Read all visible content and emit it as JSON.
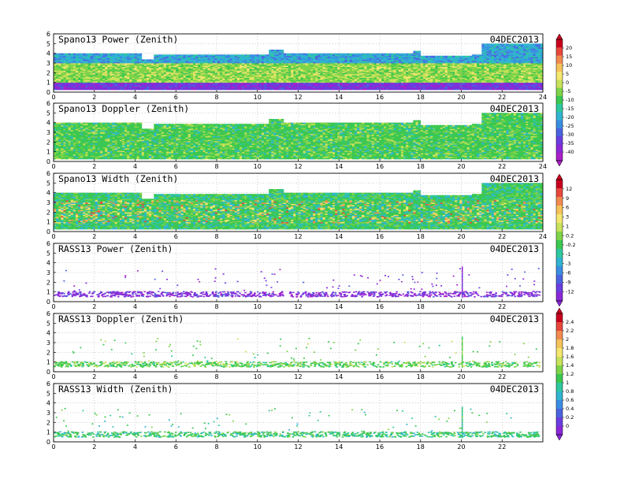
{
  "chart_data": [
    {
      "type": "heatmap",
      "title": "Spano13 Power (Zenith)",
      "date": "04DEC2013",
      "x_ticks": [
        "0",
        "2",
        "4",
        "6",
        "8",
        "10",
        "12",
        "14",
        "16",
        "18",
        "20",
        "22",
        "24"
      ],
      "y_ticks": [
        "0",
        "1",
        "2",
        "3",
        "4",
        "5",
        "6"
      ],
      "xlim": [
        0,
        24
      ],
      "ylim": [
        0,
        6
      ],
      "grid": true,
      "colorbar": "power",
      "profile": "power",
      "coverage_top_km": [
        [
          0,
          4.1
        ],
        [
          0.9,
          4.1
        ],
        [
          3.0,
          4.1
        ],
        [
          4.3,
          3.4
        ],
        [
          4.9,
          3.9
        ],
        [
          7.5,
          3.9
        ],
        [
          10.5,
          4.4
        ],
        [
          11.2,
          4.0
        ],
        [
          17.6,
          4.3
        ],
        [
          18.0,
          3.8
        ],
        [
          20.5,
          3.9
        ],
        [
          21.0,
          5.0
        ],
        [
          24,
          5.1
        ]
      ]
    },
    {
      "type": "heatmap",
      "title": "Spano13 Doppler (Zenith)",
      "date": "04DEC2013",
      "x_ticks": [
        "0",
        "2",
        "4",
        "6",
        "8",
        "10",
        "12",
        "14",
        "16",
        "18",
        "20",
        "22",
        "24"
      ],
      "y_ticks": [
        "0",
        "1",
        "2",
        "3",
        "4",
        "5",
        "6"
      ],
      "xlim": [
        0,
        24
      ],
      "ylim": [
        0,
        6
      ],
      "grid": true,
      "colorbar": "power",
      "profile": "doppler",
      "coverage_top_km": [
        [
          0,
          4.1
        ],
        [
          0.9,
          4.1
        ],
        [
          3.0,
          4.1
        ],
        [
          4.3,
          3.4
        ],
        [
          4.9,
          3.9
        ],
        [
          7.5,
          3.9
        ],
        [
          10.5,
          4.4
        ],
        [
          11.2,
          4.0
        ],
        [
          17.6,
          4.3
        ],
        [
          18.0,
          3.8
        ],
        [
          20.5,
          3.9
        ],
        [
          21.0,
          5.0
        ],
        [
          24,
          5.1
        ]
      ]
    },
    {
      "type": "heatmap",
      "title": "Spano13 Width (Zenith)",
      "date": "04DEC2013",
      "x_ticks": [
        "0",
        "2",
        "4",
        "6",
        "8",
        "10",
        "12",
        "14",
        "16",
        "18",
        "20",
        "22",
        "24"
      ],
      "y_ticks": [
        "0",
        "1",
        "2",
        "3",
        "4",
        "5",
        "6"
      ],
      "xlim": [
        0,
        24
      ],
      "ylim": [
        0,
        6
      ],
      "grid": true,
      "colorbar": "width",
      "profile": "width",
      "coverage_top_km": [
        [
          0,
          4.1
        ],
        [
          0.9,
          4.1
        ],
        [
          3.0,
          4.1
        ],
        [
          4.3,
          3.4
        ],
        [
          4.9,
          3.9
        ],
        [
          7.5,
          3.9
        ],
        [
          10.5,
          4.4
        ],
        [
          11.2,
          4.0
        ],
        [
          17.6,
          4.3
        ],
        [
          18.0,
          3.8
        ],
        [
          20.5,
          3.9
        ],
        [
          21.0,
          5.0
        ],
        [
          24,
          5.1
        ]
      ]
    },
    {
      "type": "scatter",
      "title": "RASS13 Power (Zenith)",
      "date": "04DEC2013",
      "x_ticks": [
        "0",
        "2",
        "4",
        "6",
        "8",
        "10",
        "12",
        "14",
        "16",
        "18",
        "20",
        "22"
      ],
      "y_ticks": [
        "0",
        "1",
        "2",
        "3",
        "4",
        "5",
        "6"
      ],
      "xlim": [
        0,
        24
      ],
      "ylim": [
        0,
        6
      ],
      "grid": true,
      "colorbar": "width",
      "profile": "rass_power"
    },
    {
      "type": "scatter",
      "title": "RASS13 Doppler (Zenith)",
      "date": "04DEC2013",
      "x_ticks": [
        "0",
        "2",
        "4",
        "6",
        "8",
        "10",
        "12",
        "14",
        "16",
        "18",
        "20",
        "22"
      ],
      "y_ticks": [
        "0",
        "1",
        "2",
        "3",
        "4",
        "5",
        "6"
      ],
      "xlim": [
        0,
        24
      ],
      "ylim": [
        0,
        6
      ],
      "grid": true,
      "colorbar": "rass",
      "profile": "rass_doppler"
    },
    {
      "type": "scatter",
      "title": "RASS13 Width (Zenith)",
      "date": "04DEC2013",
      "x_ticks": [
        "0",
        "2",
        "4",
        "6",
        "8",
        "10",
        "12",
        "14",
        "16",
        "18",
        "20",
        "22"
      ],
      "y_ticks": [
        "0",
        "1",
        "2",
        "3",
        "4",
        "5",
        "6"
      ],
      "xlim": [
        0,
        24
      ],
      "ylim": [
        0,
        6
      ],
      "grid": true,
      "colorbar": "rass",
      "profile": "rass_width"
    }
  ],
  "colorbars": {
    "power": {
      "labels": [
        "20",
        "15",
        "10",
        "5",
        "0",
        "-5",
        "-10",
        "-15",
        "-20",
        "-25",
        "-30",
        "-35",
        "-40"
      ],
      "colors": [
        "#c8001e",
        "#e8483c",
        "#f28a50",
        "#f6c25a",
        "#f5e66e",
        "#c8e25a",
        "#7ed448",
        "#3ac850",
        "#2ec8a0",
        "#30b4d2",
        "#3a8ee2",
        "#4a64e0",
        "#6a3ee0",
        "#8a28d8",
        "#a820c8"
      ]
    },
    "width": {
      "labels": [
        "12",
        "9",
        "6",
        "3",
        "1",
        "0.2",
        "-0.2",
        "-1",
        "-3",
        "-6",
        "-9",
        "-12"
      ],
      "colors": [
        "#c8001e",
        "#e8483c",
        "#f28a50",
        "#f6c25a",
        "#f5e66e",
        "#c8e25a",
        "#7ed448",
        "#3ac850",
        "#2ec8a0",
        "#30b4d2",
        "#3a8ee2",
        "#4a64e0",
        "#6a3ee0",
        "#8a28d8"
      ]
    },
    "rass": {
      "labels": [
        "2.4",
        "2.2",
        "2",
        "1.8",
        "1.6",
        "1.4",
        "1.2",
        "1",
        "0.8",
        "0.6",
        "0.4",
        "0.2",
        "0"
      ],
      "colors": [
        "#c8001e",
        "#e8483c",
        "#f28a50",
        "#f6c25a",
        "#f5e66e",
        "#c8e25a",
        "#7ed448",
        "#3ac850",
        "#2ec8a0",
        "#30b4d2",
        "#3a8ee2",
        "#4a64e0",
        "#6a3ee0",
        "#8a28d8"
      ]
    }
  }
}
